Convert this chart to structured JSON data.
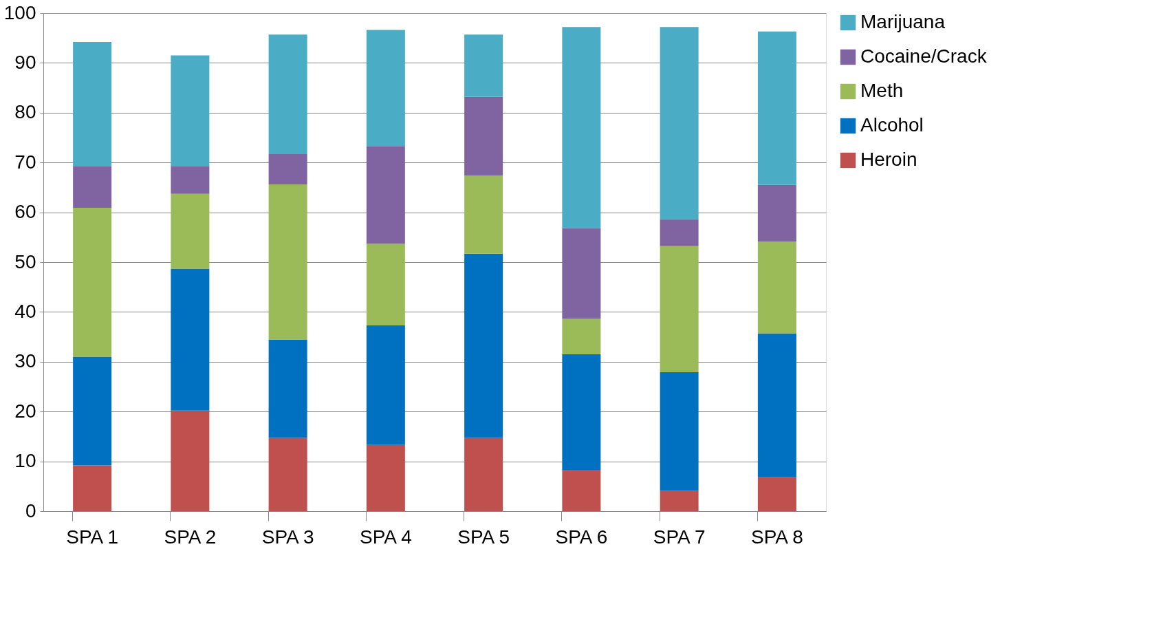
{
  "chart_data": {
    "type": "bar",
    "stacked": true,
    "categories": [
      "SPA 1",
      "SPA 2",
      "SPA 3",
      "SPA 4",
      "SPA 5",
      "SPA 6",
      "SPA 7",
      "SPA 8"
    ],
    "series": [
      {
        "name": "Heroin",
        "color": "#c0504d",
        "values": [
          9.2,
          20.2,
          14.7,
          13.3,
          14.7,
          8.3,
          4.1,
          6.8
        ]
      },
      {
        "name": "Alcohol",
        "color": "#0070c0",
        "values": [
          21.8,
          28.5,
          19.7,
          24.0,
          37.0,
          23.2,
          23.8,
          28.9
        ]
      },
      {
        "name": "Meth",
        "color": "#9bbb59",
        "values": [
          29.9,
          15.0,
          31.2,
          16.4,
          15.7,
          7.1,
          25.3,
          18.4
        ]
      },
      {
        "name": "Cocaine/Crack",
        "color": "#8064a2",
        "values": [
          8.4,
          5.6,
          6.1,
          19.6,
          15.8,
          18.2,
          5.4,
          11.4
        ]
      },
      {
        "name": "Marijuana",
        "color": "#4bacc6",
        "values": [
          24.9,
          22.2,
          24.0,
          23.3,
          12.5,
          40.4,
          38.6,
          30.8
        ]
      }
    ],
    "ylim": [
      0,
      100
    ],
    "yticks": [
      0,
      10,
      20,
      30,
      40,
      50,
      60,
      70,
      80,
      90,
      100
    ],
    "grid": "y",
    "legend": "right"
  }
}
